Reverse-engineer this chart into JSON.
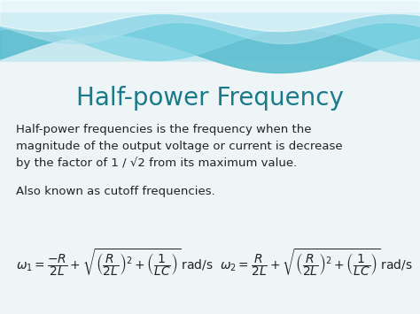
{
  "title": "Half-power Frequency",
  "title_color": "#1a7a8a",
  "title_fontsize": 20,
  "body_text_1": "Half-power frequencies is the frequency when the\nmagnitude of the output voltage or current is decrease\nby the factor of 1 / √2 from its maximum value.",
  "body_text_2": "Also known as cutoff frequencies.",
  "formula_1": "$\\omega_1 = \\dfrac{-R}{2L} + \\sqrt{\\left(\\dfrac{R}{2L}\\right)^2 + \\left(\\dfrac{1}{LC}\\right)}\\,\\mathrm{rad/s}$",
  "formula_2": "$\\omega_2 = \\dfrac{R}{2L} + \\sqrt{\\left(\\dfrac{R}{2L}\\right)^2 + \\left(\\dfrac{1}{LC}\\right)}\\,\\mathrm{rad/s}$",
  "bg_color": "#eef5f7",
  "text_color": "#222222",
  "body_fontsize": 9.5,
  "formula_fontsize": 10,
  "wave_top_color": "#b8e4ee",
  "wave_mid_color": "#6dcadb",
  "wave_light_color": "#d8eef4"
}
